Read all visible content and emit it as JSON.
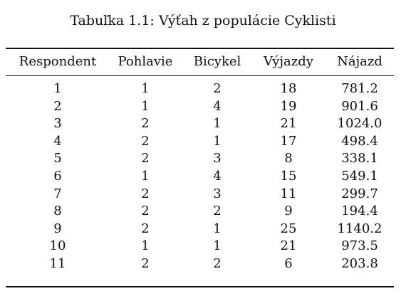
{
  "caption": "Tabuľka 1.1: Výťah z populácie Cyklisti",
  "table": {
    "headers": [
      "Respondent",
      "Pohlavie",
      "Bicykel",
      "Výjazdy",
      "Nájazd"
    ],
    "rows": [
      [
        "1",
        "1",
        "2",
        "18",
        "781.2"
      ],
      [
        "2",
        "1",
        "4",
        "19",
        "901.6"
      ],
      [
        "3",
        "2",
        "1",
        "21",
        "1024.0"
      ],
      [
        "4",
        "2",
        "1",
        "17",
        "498.4"
      ],
      [
        "5",
        "2",
        "3",
        "8",
        "338.1"
      ],
      [
        "6",
        "1",
        "4",
        "15",
        "549.1"
      ],
      [
        "7",
        "2",
        "3",
        "11",
        "299.7"
      ],
      [
        "8",
        "2",
        "2",
        "9",
        "194.4"
      ],
      [
        "9",
        "2",
        "1",
        "25",
        "1140.2"
      ],
      [
        "10",
        "1",
        "1",
        "21",
        "973.5"
      ],
      [
        "11",
        "2",
        "2",
        "6",
        "203.8"
      ]
    ]
  }
}
